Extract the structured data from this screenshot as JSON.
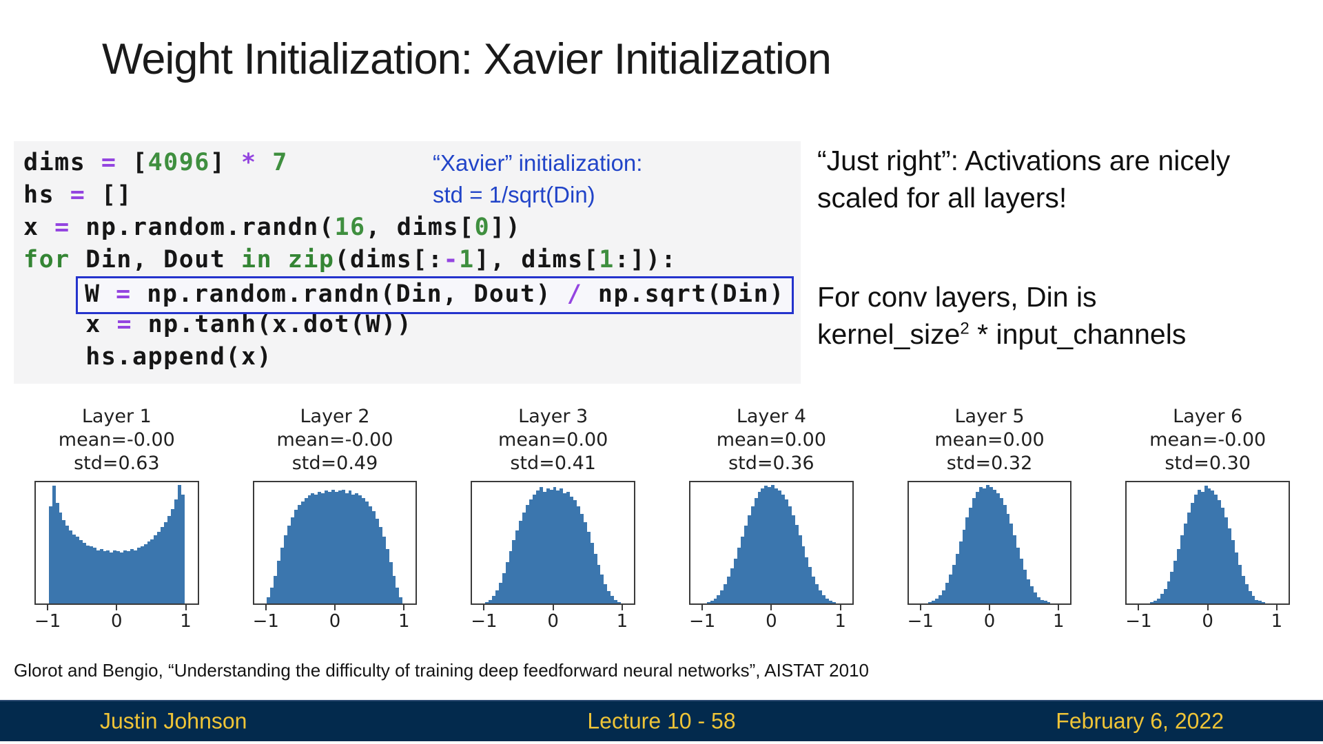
{
  "slide": {
    "title": "Weight Initialization: Xavier Initialization",
    "xavier_note": {
      "line1": "“Xavier” initialization:",
      "line2": "std = 1/sqrt(Din)",
      "color": "#2144c8"
    },
    "right_note": {
      "para1": "“Just right”: Activations are nicely scaled for all layers!",
      "para2_line1": "For conv layers, Din is",
      "para2_pre": "kernel_size",
      "para2_sup": "2",
      "para2_post": " * input_channels"
    },
    "citation": "Glorot and Bengio, “Understanding the difficulty of training deep feedforward neural networks”, AISTAT 2010"
  },
  "code": {
    "background": "#f4f4f5",
    "highlight_border": "#2433cc",
    "colors": {
      "plain": "#161616",
      "keyword": "#348534",
      "number": "#3f8f3f",
      "operator": "#9445e0"
    },
    "lines": [
      {
        "boxed": false,
        "tokens": [
          [
            "p",
            "dims "
          ],
          [
            "o",
            "="
          ],
          [
            "p",
            " ["
          ],
          [
            "n",
            "4096"
          ],
          [
            "p",
            "] "
          ],
          [
            "o",
            "*"
          ],
          [
            "p",
            " "
          ],
          [
            "n",
            "7"
          ]
        ]
      },
      {
        "boxed": false,
        "tokens": [
          [
            "p",
            "hs "
          ],
          [
            "o",
            "="
          ],
          [
            "p",
            " []"
          ]
        ]
      },
      {
        "boxed": false,
        "tokens": [
          [
            "p",
            "x "
          ],
          [
            "o",
            "="
          ],
          [
            "p",
            " np.random.randn("
          ],
          [
            "n",
            "16"
          ],
          [
            "p",
            ", dims["
          ],
          [
            "n",
            "0"
          ],
          [
            "p",
            "])"
          ]
        ]
      },
      {
        "boxed": false,
        "tokens": [
          [
            "k",
            "for"
          ],
          [
            "p",
            " Din, Dout "
          ],
          [
            "k",
            "in"
          ],
          [
            "p",
            " "
          ],
          [
            "k",
            "zip"
          ],
          [
            "p",
            "(dims[:"
          ],
          [
            "o",
            "-"
          ],
          [
            "n",
            "1"
          ],
          [
            "p",
            "], dims["
          ],
          [
            "n",
            "1"
          ],
          [
            "p",
            ":]):"
          ]
        ]
      },
      {
        "boxed": true,
        "tokens": [
          [
            "p",
            "W "
          ],
          [
            "o",
            "="
          ],
          [
            "p",
            " np.random.randn(Din, Dout) "
          ],
          [
            "o",
            "/"
          ],
          [
            "p",
            " np.sqrt(Din)"
          ]
        ]
      },
      {
        "boxed": false,
        "tokens": [
          [
            "p",
            "    x "
          ],
          [
            "o",
            "="
          ],
          [
            "p",
            " np.tanh(x.dot(W))"
          ]
        ]
      },
      {
        "boxed": false,
        "tokens": [
          [
            "p",
            "    hs.append(x)"
          ]
        ]
      }
    ]
  },
  "chart_data": [
    {
      "type": "histogram",
      "title": "Layer 1",
      "mean_label": "mean=-0.00",
      "std_label": "std=0.63",
      "bar_color": "#3b76ae",
      "x_range": [
        -1,
        1
      ],
      "x_ticks": [
        "−1",
        "0",
        "1"
      ],
      "tick_pos": [
        8,
        50,
        92
      ],
      "bars": [
        0.8,
        0.97,
        0.83,
        0.75,
        0.69,
        0.64,
        0.6,
        0.57,
        0.55,
        0.52,
        0.5,
        0.48,
        0.47,
        0.46,
        0.44,
        0.45,
        0.43,
        0.44,
        0.42,
        0.44,
        0.43,
        0.42,
        0.44,
        0.43,
        0.45,
        0.44,
        0.46,
        0.47,
        0.49,
        0.51,
        0.53,
        0.56,
        0.59,
        0.63,
        0.67,
        0.72,
        0.78,
        0.86,
        0.98,
        0.9
      ]
    },
    {
      "type": "histogram",
      "title": "Layer 2",
      "mean_label": "mean=-0.00",
      "std_label": "std=0.49",
      "bar_color": "#3b76ae",
      "x_range": [
        -1,
        1
      ],
      "x_ticks": [
        "−1",
        "0",
        "1"
      ],
      "tick_pos": [
        8,
        50,
        92
      ],
      "bars": [
        0.05,
        0.13,
        0.23,
        0.35,
        0.46,
        0.56,
        0.64,
        0.71,
        0.77,
        0.81,
        0.84,
        0.87,
        0.89,
        0.91,
        0.9,
        0.92,
        0.91,
        0.93,
        0.92,
        0.94,
        0.92,
        0.93,
        0.94,
        0.91,
        0.93,
        0.9,
        0.91,
        0.89,
        0.87,
        0.84,
        0.8,
        0.76,
        0.7,
        0.63,
        0.55,
        0.45,
        0.34,
        0.23,
        0.13,
        0.05
      ]
    },
    {
      "type": "histogram",
      "title": "Layer 3",
      "mean_label": "mean=0.00",
      "std_label": "std=0.41",
      "bar_color": "#3b76ae",
      "x_range": [
        -1,
        1
      ],
      "x_ticks": [
        "−1",
        "0",
        "1"
      ],
      "tick_pos": [
        8,
        50,
        92
      ],
      "bars": [
        0.01,
        0.03,
        0.06,
        0.11,
        0.17,
        0.25,
        0.34,
        0.43,
        0.52,
        0.6,
        0.68,
        0.75,
        0.81,
        0.86,
        0.9,
        0.93,
        0.96,
        0.92,
        0.95,
        0.94,
        0.96,
        0.93,
        0.95,
        0.91,
        0.92,
        0.88,
        0.85,
        0.8,
        0.74,
        0.67,
        0.59,
        0.5,
        0.41,
        0.32,
        0.24,
        0.16,
        0.1,
        0.06,
        0.03,
        0.01
      ]
    },
    {
      "type": "histogram",
      "title": "Layer 4",
      "mean_label": "mean=0.00",
      "std_label": "std=0.36",
      "bar_color": "#3b76ae",
      "x_range": [
        -1,
        1
      ],
      "x_ticks": [
        "−1",
        "0",
        "1"
      ],
      "tick_pos": [
        8,
        50,
        92
      ],
      "bars": [
        0.0,
        0.01,
        0.02,
        0.04,
        0.07,
        0.11,
        0.16,
        0.22,
        0.29,
        0.37,
        0.46,
        0.55,
        0.64,
        0.73,
        0.8,
        0.87,
        0.92,
        0.95,
        0.97,
        0.96,
        0.98,
        0.95,
        0.93,
        0.9,
        0.86,
        0.8,
        0.73,
        0.65,
        0.56,
        0.47,
        0.38,
        0.3,
        0.22,
        0.16,
        0.11,
        0.07,
        0.04,
        0.02,
        0.01,
        0.0
      ]
    },
    {
      "type": "histogram",
      "title": "Layer 5",
      "mean_label": "mean=0.00",
      "std_label": "std=0.32",
      "bar_color": "#3b76ae",
      "x_range": [
        -1,
        1
      ],
      "x_ticks": [
        "−1",
        "0",
        "1"
      ],
      "tick_pos": [
        8,
        50,
        92
      ],
      "bars": [
        0.0,
        0.0,
        0.01,
        0.02,
        0.04,
        0.07,
        0.11,
        0.17,
        0.24,
        0.32,
        0.41,
        0.51,
        0.61,
        0.71,
        0.79,
        0.87,
        0.92,
        0.96,
        0.95,
        0.98,
        0.96,
        0.94,
        0.91,
        0.87,
        0.81,
        0.74,
        0.66,
        0.56,
        0.46,
        0.37,
        0.28,
        0.2,
        0.14,
        0.09,
        0.05,
        0.03,
        0.02,
        0.01,
        0.0,
        0.0
      ]
    },
    {
      "type": "histogram",
      "title": "Layer 6",
      "mean_label": "mean=-0.00",
      "std_label": "std=0.30",
      "bar_color": "#3b76ae",
      "x_range": [
        -1,
        1
      ],
      "x_ticks": [
        "−1",
        "0",
        "1"
      ],
      "tick_pos": [
        8,
        50,
        92
      ],
      "bars": [
        0.0,
        0.0,
        0.0,
        0.01,
        0.02,
        0.04,
        0.08,
        0.12,
        0.18,
        0.26,
        0.35,
        0.45,
        0.56,
        0.66,
        0.75,
        0.83,
        0.9,
        0.94,
        0.92,
        0.97,
        0.95,
        0.93,
        0.9,
        0.85,
        0.79,
        0.71,
        0.62,
        0.52,
        0.42,
        0.32,
        0.23,
        0.16,
        0.1,
        0.06,
        0.03,
        0.02,
        0.01,
        0.0,
        0.0,
        0.0
      ]
    }
  ],
  "footer": {
    "author": "Justin Johnson",
    "lecture": "Lecture 10 - 58",
    "date": "February 6, 2022",
    "bar_color": "#032a4d",
    "text_color": "#efc437"
  }
}
